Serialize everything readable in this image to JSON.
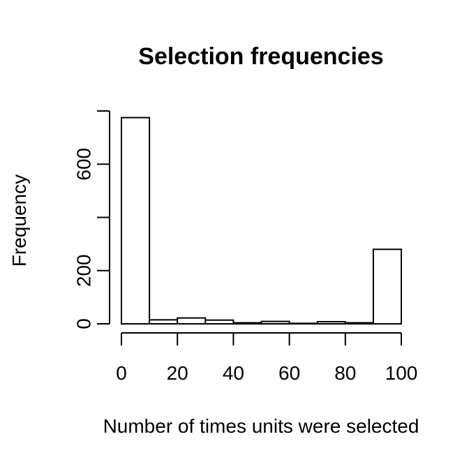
{
  "chart_data": {
    "type": "bar",
    "title": "Selection frequencies",
    "xlabel": "Number of times units were selected",
    "ylabel": "Frequency",
    "bins": [
      {
        "start": 0,
        "end": 10,
        "value": 775
      },
      {
        "start": 10,
        "end": 20,
        "value": 15
      },
      {
        "start": 20,
        "end": 30,
        "value": 22
      },
      {
        "start": 30,
        "end": 40,
        "value": 14
      },
      {
        "start": 40,
        "end": 50,
        "value": 4
      },
      {
        "start": 50,
        "end": 60,
        "value": 9
      },
      {
        "start": 60,
        "end": 70,
        "value": 2
      },
      {
        "start": 70,
        "end": 80,
        "value": 8
      },
      {
        "start": 80,
        "end": 90,
        "value": 4
      },
      {
        "start": 90,
        "end": 100,
        "value": 280
      }
    ],
    "xlim": [
      0,
      100
    ],
    "ylim": [
      0,
      800
    ],
    "x_ticks": [
      0,
      20,
      40,
      60,
      80,
      100
    ],
    "y_ticks": [
      0,
      200,
      400,
      600,
      800
    ],
    "y_tick_labels": [
      "0",
      "200",
      "",
      "600",
      ""
    ],
    "grid": false,
    "legend": "none"
  }
}
